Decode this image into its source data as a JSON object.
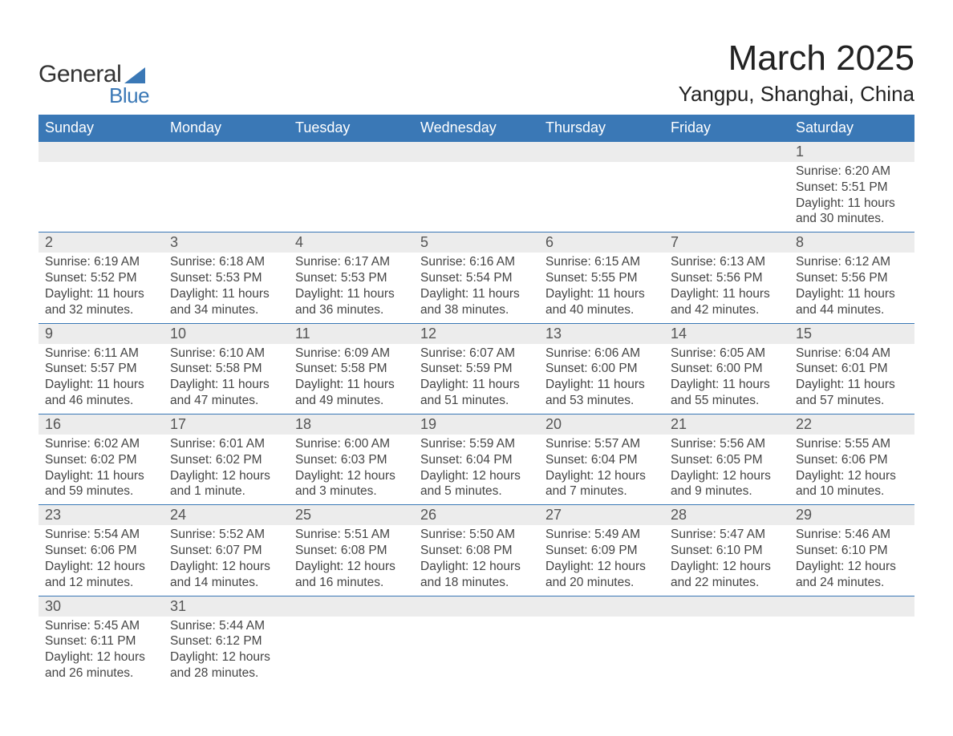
{
  "brand": {
    "name1": "General",
    "name2": "Blue",
    "logo_color": "#3a78b6"
  },
  "title": "March 2025",
  "location": "Yangpu, Shanghai, China",
  "colors": {
    "header_bg": "#3a78b6",
    "header_text": "#ffffff",
    "daynum_bg": "#ececec",
    "row_border": "#3a78b6",
    "text": "#444444",
    "title_text": "#222222"
  },
  "typography": {
    "title_fontsize": 44,
    "location_fontsize": 26,
    "header_fontsize": 18,
    "daynum_fontsize": 18,
    "detail_fontsize": 15.5
  },
  "day_headers": [
    "Sunday",
    "Monday",
    "Tuesday",
    "Wednesday",
    "Thursday",
    "Friday",
    "Saturday"
  ],
  "weeks": [
    [
      null,
      null,
      null,
      null,
      null,
      null,
      {
        "n": "1",
        "sr": "6:20 AM",
        "ss": "5:51 PM",
        "dl": "11 hours and 30 minutes."
      }
    ],
    [
      {
        "n": "2",
        "sr": "6:19 AM",
        "ss": "5:52 PM",
        "dl": "11 hours and 32 minutes."
      },
      {
        "n": "3",
        "sr": "6:18 AM",
        "ss": "5:53 PM",
        "dl": "11 hours and 34 minutes."
      },
      {
        "n": "4",
        "sr": "6:17 AM",
        "ss": "5:53 PM",
        "dl": "11 hours and 36 minutes."
      },
      {
        "n": "5",
        "sr": "6:16 AM",
        "ss": "5:54 PM",
        "dl": "11 hours and 38 minutes."
      },
      {
        "n": "6",
        "sr": "6:15 AM",
        "ss": "5:55 PM",
        "dl": "11 hours and 40 minutes."
      },
      {
        "n": "7",
        "sr": "6:13 AM",
        "ss": "5:56 PM",
        "dl": "11 hours and 42 minutes."
      },
      {
        "n": "8",
        "sr": "6:12 AM",
        "ss": "5:56 PM",
        "dl": "11 hours and 44 minutes."
      }
    ],
    [
      {
        "n": "9",
        "sr": "6:11 AM",
        "ss": "5:57 PM",
        "dl": "11 hours and 46 minutes."
      },
      {
        "n": "10",
        "sr": "6:10 AM",
        "ss": "5:58 PM",
        "dl": "11 hours and 47 minutes."
      },
      {
        "n": "11",
        "sr": "6:09 AM",
        "ss": "5:58 PM",
        "dl": "11 hours and 49 minutes."
      },
      {
        "n": "12",
        "sr": "6:07 AM",
        "ss": "5:59 PM",
        "dl": "11 hours and 51 minutes."
      },
      {
        "n": "13",
        "sr": "6:06 AM",
        "ss": "6:00 PM",
        "dl": "11 hours and 53 minutes."
      },
      {
        "n": "14",
        "sr": "6:05 AM",
        "ss": "6:00 PM",
        "dl": "11 hours and 55 minutes."
      },
      {
        "n": "15",
        "sr": "6:04 AM",
        "ss": "6:01 PM",
        "dl": "11 hours and 57 minutes."
      }
    ],
    [
      {
        "n": "16",
        "sr": "6:02 AM",
        "ss": "6:02 PM",
        "dl": "11 hours and 59 minutes."
      },
      {
        "n": "17",
        "sr": "6:01 AM",
        "ss": "6:02 PM",
        "dl": "12 hours and 1 minute."
      },
      {
        "n": "18",
        "sr": "6:00 AM",
        "ss": "6:03 PM",
        "dl": "12 hours and 3 minutes."
      },
      {
        "n": "19",
        "sr": "5:59 AM",
        "ss": "6:04 PM",
        "dl": "12 hours and 5 minutes."
      },
      {
        "n": "20",
        "sr": "5:57 AM",
        "ss": "6:04 PM",
        "dl": "12 hours and 7 minutes."
      },
      {
        "n": "21",
        "sr": "5:56 AM",
        "ss": "6:05 PM",
        "dl": "12 hours and 9 minutes."
      },
      {
        "n": "22",
        "sr": "5:55 AM",
        "ss": "6:06 PM",
        "dl": "12 hours and 10 minutes."
      }
    ],
    [
      {
        "n": "23",
        "sr": "5:54 AM",
        "ss": "6:06 PM",
        "dl": "12 hours and 12 minutes."
      },
      {
        "n": "24",
        "sr": "5:52 AM",
        "ss": "6:07 PM",
        "dl": "12 hours and 14 minutes."
      },
      {
        "n": "25",
        "sr": "5:51 AM",
        "ss": "6:08 PM",
        "dl": "12 hours and 16 minutes."
      },
      {
        "n": "26",
        "sr": "5:50 AM",
        "ss": "6:08 PM",
        "dl": "12 hours and 18 minutes."
      },
      {
        "n": "27",
        "sr": "5:49 AM",
        "ss": "6:09 PM",
        "dl": "12 hours and 20 minutes."
      },
      {
        "n": "28",
        "sr": "5:47 AM",
        "ss": "6:10 PM",
        "dl": "12 hours and 22 minutes."
      },
      {
        "n": "29",
        "sr": "5:46 AM",
        "ss": "6:10 PM",
        "dl": "12 hours and 24 minutes."
      }
    ],
    [
      {
        "n": "30",
        "sr": "5:45 AM",
        "ss": "6:11 PM",
        "dl": "12 hours and 26 minutes."
      },
      {
        "n": "31",
        "sr": "5:44 AM",
        "ss": "6:12 PM",
        "dl": "12 hours and 28 minutes."
      },
      null,
      null,
      null,
      null,
      null
    ]
  ],
  "labels": {
    "sunrise_prefix": "Sunrise: ",
    "sunset_prefix": "Sunset: ",
    "daylight_prefix": "Daylight: "
  }
}
